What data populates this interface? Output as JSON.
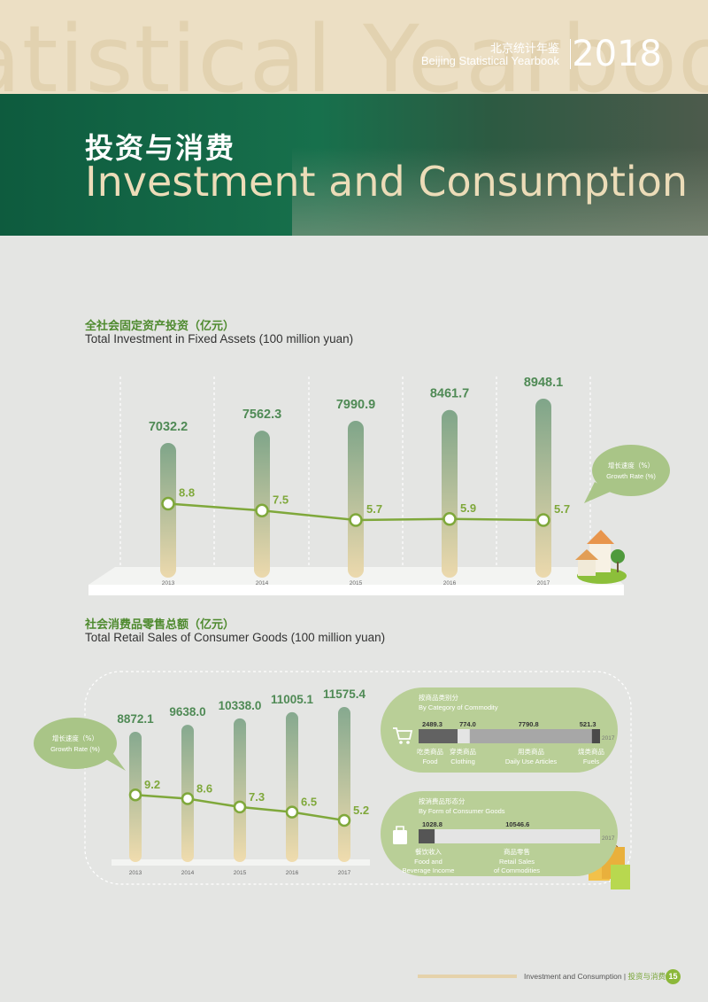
{
  "header": {
    "watermark": "atistical Yearbook",
    "yearbook_cn": "北京统计年鉴",
    "yearbook_en": "Beijing Statistical Yearbook",
    "year": "2018"
  },
  "banner": {
    "title_cn": "投资与消费",
    "title_en": "Investment and Consumption"
  },
  "section1": {
    "title_cn": "全社会固定资产投资（亿元）",
    "title_en": "Total Investment in Fixed Assets (100 million yuan)",
    "bubble_cn": "增长速度（%）",
    "bubble_en": "Growth Rate (%)"
  },
  "section2": {
    "title_cn": "社会消费品零售总额（亿元）",
    "title_en": "Total Retail Sales of Consumer Goods (100 million yuan)",
    "bubble_cn": "增长速度（%）",
    "bubble_en": "Growth Rate (%)",
    "panel_commodity": {
      "title_cn": "按商品类别分",
      "title_en": "By Category of Commodity",
      "year": "2017",
      "categories": [
        {
          "cn": "吃类商品",
          "en": "Food",
          "value": "2489.3",
          "num": 2489.3,
          "color": "#626262"
        },
        {
          "cn": "穿类商品",
          "en": "Clothing",
          "value": "774.0",
          "num": 774.0,
          "color": "#e4e4e4"
        },
        {
          "cn": "用类商品",
          "en": "Daily Use Articles",
          "value": "7790.8",
          "num": 7790.8,
          "color": "#a7a7a7"
        },
        {
          "cn": "烧类商品",
          "en": "Fuels",
          "value": "521.3",
          "num": 521.3,
          "color": "#4a4a4a"
        }
      ]
    },
    "panel_form": {
      "title_cn": "按消费品形态分",
      "title_en": "By Form of Consumer Goods",
      "year": "2017",
      "forms": [
        {
          "cn": "餐饮收入",
          "en": "Food and Beverage Income",
          "value": "1028.8",
          "num": 1028.8,
          "color": "#555555"
        },
        {
          "cn": "商品零售",
          "en": "Retail Sales of Commodities",
          "value": "10546.6",
          "num": 10546.6,
          "color": "#e4e4e4"
        }
      ]
    }
  },
  "chart_data": [
    {
      "type": "bar",
      "title": "全社会固定资产投资（亿元） Total Investment in Fixed Assets (100 million yuan)",
      "categories": [
        "2013",
        "2014",
        "2015",
        "2016",
        "2017"
      ],
      "series": [
        {
          "name": "Total Investment in Fixed Assets",
          "values": [
            7032.2,
            7562.3,
            7990.9,
            8461.7,
            8948.1
          ],
          "labels": [
            "7032.2",
            "7562.3",
            "7990.9",
            "8461.7",
            "8948.1"
          ]
        },
        {
          "name": "增长速度（%） Growth Rate (%)",
          "type": "line",
          "values": [
            8.8,
            7.5,
            5.7,
            5.9,
            5.7
          ],
          "labels": [
            "8.8",
            "7.5",
            "5.7",
            "5.9",
            "5.7"
          ]
        }
      ]
    },
    {
      "type": "bar",
      "title": "社会消费品零售总额（亿元） Total Retail Sales of Consumer Goods (100 million yuan)",
      "categories": [
        "2013",
        "2014",
        "2015",
        "2016",
        "2017"
      ],
      "series": [
        {
          "name": "Total Retail Sales of Consumer Goods",
          "values": [
            8872.1,
            9638.0,
            10338.0,
            11005.1,
            11575.4
          ],
          "labels": [
            "8872.1",
            "9638.0",
            "10338.0",
            "11005.1",
            "11575.4"
          ]
        },
        {
          "name": "增长速度（%） Growth Rate (%)",
          "type": "line",
          "values": [
            9.2,
            8.6,
            7.3,
            6.5,
            5.2
          ],
          "labels": [
            "9.2",
            "8.6",
            "7.3",
            "6.5",
            "5.2"
          ]
        }
      ]
    }
  ],
  "colors": {
    "bar_top": "#7fa589",
    "bar_bottom": "#ecd9ad",
    "line": "#7fa83b",
    "value_label": "#4f8a55",
    "bubble": "#a9c587"
  },
  "footer": {
    "text_en": "Investment and Consumption",
    "text_cn": "投资与消费",
    "page": "15"
  }
}
